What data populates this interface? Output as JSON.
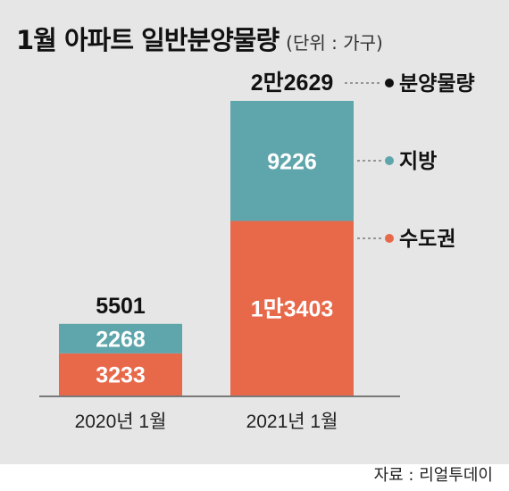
{
  "title": "1월 아파트 일반분양물량",
  "unit": "(단위 : 가구)",
  "source": "자료 : 리얼투데이",
  "colors": {
    "metro": "#e8694a",
    "regional": "#5ea6ab",
    "total_dot": "#111111",
    "panel": "#e6e6e6"
  },
  "chart_data": {
    "type": "bar",
    "stacked": true,
    "title": "1월 아파트 일반분양물량",
    "unit": "(단위 : 가구)",
    "categories": [
      "2020년 1월",
      "2021년 1월"
    ],
    "series": [
      {
        "name": "수도권",
        "color": "#e8694a",
        "values": [
          3233,
          13403
        ],
        "value_labels": [
          "3233",
          "1만3403"
        ]
      },
      {
        "name": "지방",
        "color": "#5ea6ab",
        "values": [
          2268,
          9226
        ],
        "value_labels": [
          "2268",
          "9226"
        ]
      }
    ],
    "totals": [
      5501,
      22629
    ],
    "total_labels": [
      "5501",
      "2만2629"
    ],
    "total_series_name": "분양물량",
    "ylim": [
      0,
      22629
    ]
  }
}
